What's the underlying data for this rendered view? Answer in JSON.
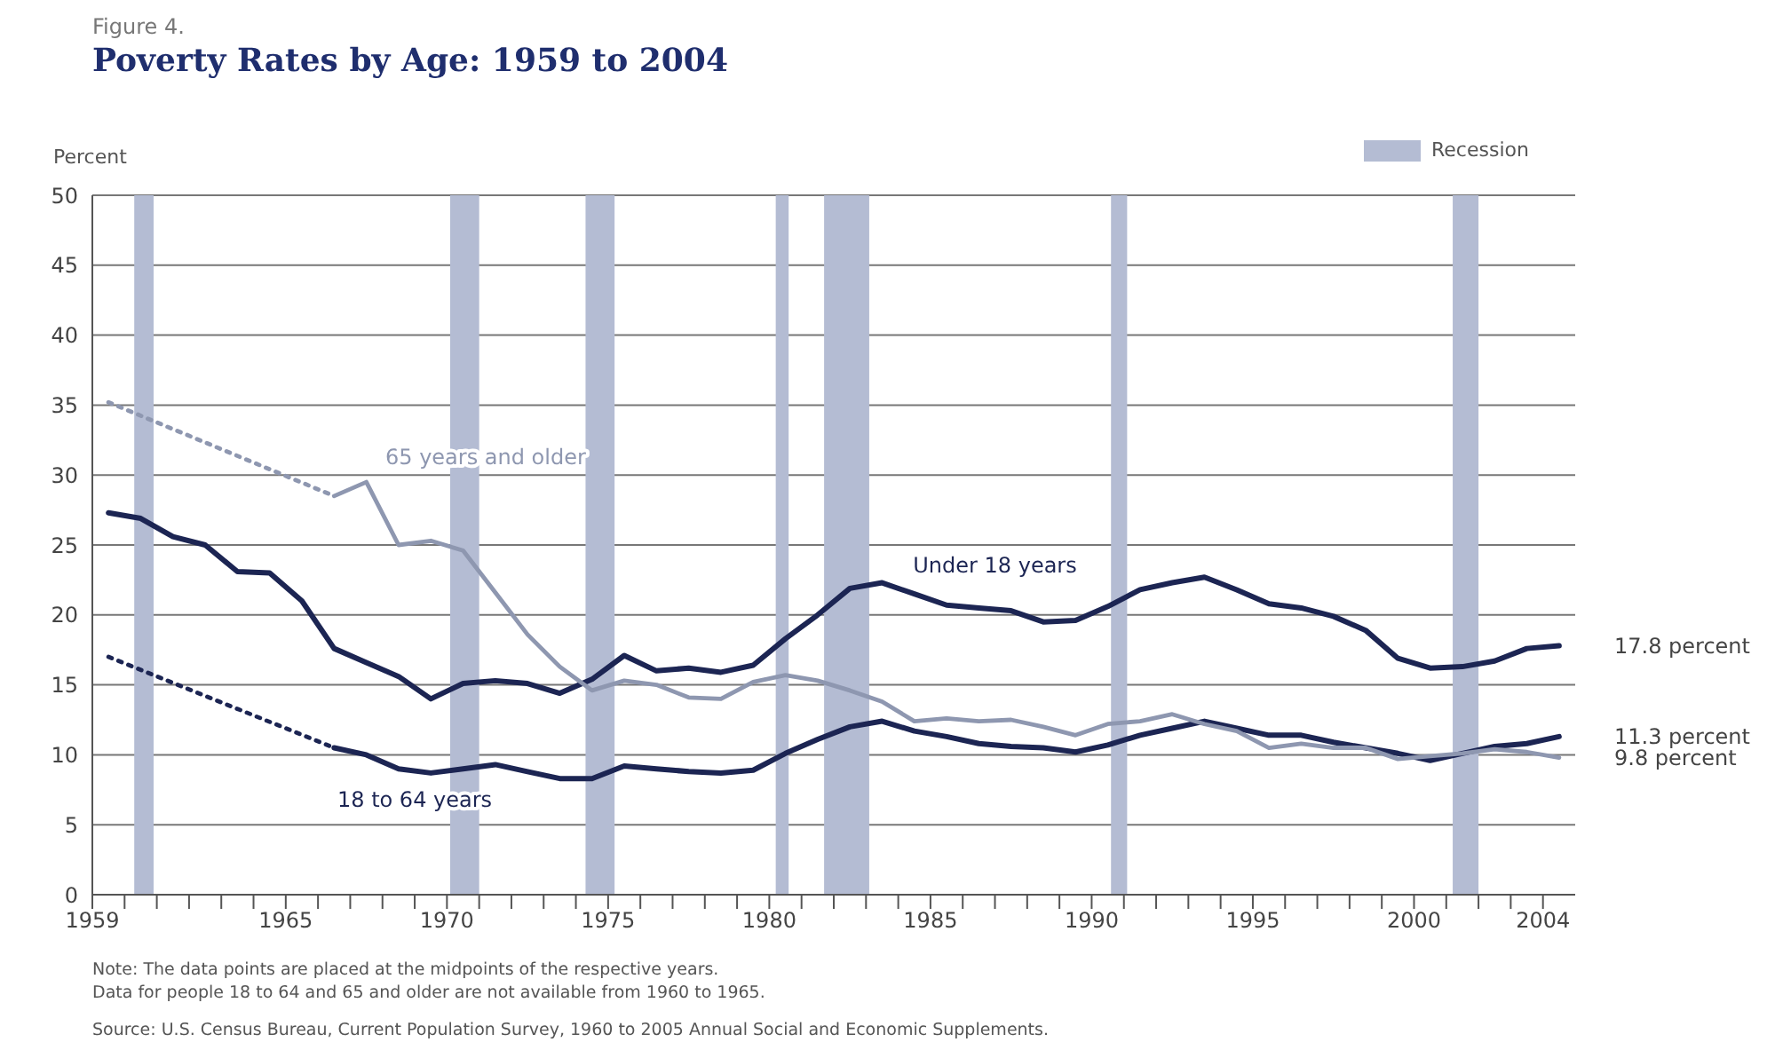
{
  "chart_data": {
    "type": "line",
    "subtitle": "Figure 4.",
    "title": "Poverty Rates by Age:  1959 to 2004",
    "ylabel": "Percent",
    "xlim": [
      1959,
      2005
    ],
    "ylim": [
      0,
      50
    ],
    "yticks": [
      0,
      5,
      10,
      15,
      20,
      25,
      30,
      35,
      40,
      45,
      50
    ],
    "xticks": [
      1959,
      {
        "value": 1960,
        "label": null
      },
      {
        "value": 1961,
        "label": null
      },
      {
        "value": 1962,
        "label": null
      },
      {
        "value": 1963,
        "label": null
      },
      {
        "value": 1964,
        "label": null
      },
      1965,
      {
        "value": 1966,
        "label": null
      },
      {
        "value": 1967,
        "label": null
      },
      {
        "value": 1968,
        "label": null
      },
      {
        "value": 1969,
        "label": null
      },
      1970,
      {
        "value": 1971,
        "label": null
      },
      {
        "value": 1972,
        "label": null
      },
      {
        "value": 1973,
        "label": null
      },
      {
        "value": 1974,
        "label": null
      },
      1975,
      {
        "value": 1976,
        "label": null
      },
      {
        "value": 1977,
        "label": null
      },
      {
        "value": 1978,
        "label": null
      },
      {
        "value": 1979,
        "label": null
      },
      1980,
      {
        "value": 1981,
        "label": null
      },
      {
        "value": 1982,
        "label": null
      },
      {
        "value": 1983,
        "label": null
      },
      {
        "value": 1984,
        "label": null
      },
      1985,
      {
        "value": 1986,
        "label": null
      },
      {
        "value": 1987,
        "label": null
      },
      {
        "value": 1988,
        "label": null
      },
      {
        "value": 1989,
        "label": null
      },
      1990,
      {
        "value": 1991,
        "label": null
      },
      {
        "value": 1992,
        "label": null
      },
      {
        "value": 1993,
        "label": null
      },
      {
        "value": 1994,
        "label": null
      },
      1995,
      {
        "value": 1996,
        "label": null
      },
      {
        "value": 1997,
        "label": null
      },
      {
        "value": 1998,
        "label": null
      },
      {
        "value": 1999,
        "label": null
      },
      2000,
      {
        "value": 2001,
        "label": null
      },
      {
        "value": 2002,
        "label": null
      },
      {
        "value": 2003,
        "label": null
      },
      2004
    ],
    "grid": "y",
    "legend": "top right",
    "marker": "none",
    "line_style": "solid",
    "series": [
      {
        "name": "Under 18 years",
        "color": "#1c2553",
        "x": [
          1959.5,
          1960.5,
          1961.5,
          1962.5,
          1963.5,
          1964.5,
          1965.5,
          1966.5,
          1967.5,
          1968.5,
          1969.5,
          1970.5,
          1971.5,
          1972.5,
          1973.5,
          1974.5,
          1975.5,
          1976.5,
          1977.5,
          1978.5,
          1979.5,
          1980.5,
          1981.5,
          1982.5,
          1983.5,
          1984.5,
          1985.5,
          1986.5,
          1987.5,
          1988.5,
          1989.5,
          1990.5,
          1991.5,
          1992.5,
          1993.5,
          1994.5,
          1995.5,
          1996.5,
          1997.5,
          1998.5,
          1999.5,
          2000.5,
          2001.5,
          2002.5,
          2003.5,
          2004.5
        ],
        "values": [
          27.3,
          26.9,
          25.6,
          25.0,
          23.1,
          23.0,
          21.0,
          17.6,
          16.6,
          15.6,
          14.0,
          15.1,
          15.3,
          15.1,
          14.4,
          15.4,
          17.1,
          16.0,
          16.2,
          15.9,
          16.4,
          18.3,
          20.0,
          21.9,
          22.3,
          21.5,
          20.7,
          20.5,
          20.3,
          19.5,
          19.6,
          20.6,
          21.8,
          22.3,
          22.7,
          21.8,
          20.8,
          20.5,
          19.9,
          18.9,
          16.9,
          16.2,
          16.3,
          16.7,
          17.6,
          17.8
        ]
      },
      {
        "name": "18 to 64 years",
        "color": "#1c2553",
        "x": [
          1966.5,
          1967.5,
          1968.5,
          1969.5,
          1970.5,
          1971.5,
          1972.5,
          1973.5,
          1974.5,
          1975.5,
          1976.5,
          1977.5,
          1978.5,
          1979.5,
          1980.5,
          1981.5,
          1982.5,
          1983.5,
          1984.5,
          1985.5,
          1986.5,
          1987.5,
          1988.5,
          1989.5,
          1990.5,
          1991.5,
          1992.5,
          1993.5,
          1994.5,
          1995.5,
          1996.5,
          1997.5,
          1998.5,
          1999.5,
          2000.5,
          2001.5,
          2002.5,
          2003.5,
          2004.5
        ],
        "values": [
          10.5,
          10.0,
          9.0,
          8.7,
          9.0,
          9.3,
          8.8,
          8.3,
          8.3,
          9.2,
          9.0,
          8.8,
          8.7,
          8.9,
          10.1,
          11.1,
          12.0,
          12.4,
          11.7,
          11.3,
          10.8,
          10.6,
          10.5,
          10.2,
          10.7,
          11.4,
          11.9,
          12.4,
          11.9,
          11.4,
          11.4,
          10.9,
          10.5,
          10.1,
          9.6,
          10.1,
          10.6,
          10.8,
          11.3
        ]
      },
      {
        "name": "65 years and older",
        "color": "#8e97b0",
        "x": [
          1966.5,
          1967.5,
          1968.5,
          1969.5,
          1970.5,
          1971.5,
          1972.5,
          1973.5,
          1974.5,
          1975.5,
          1976.5,
          1977.5,
          1978.5,
          1979.5,
          1980.5,
          1981.5,
          1982.5,
          1983.5,
          1984.5,
          1985.5,
          1986.5,
          1987.5,
          1988.5,
          1989.5,
          1990.5,
          1991.5,
          1992.5,
          1993.5,
          1994.5,
          1995.5,
          1996.5,
          1997.5,
          1998.5,
          1999.5,
          2000.5,
          2001.5,
          2002.5,
          2003.5,
          2004.5
        ],
        "values": [
          28.5,
          29.5,
          25.0,
          25.3,
          24.6,
          21.6,
          18.6,
          16.3,
          14.6,
          15.3,
          15.0,
          14.1,
          14.0,
          15.2,
          15.7,
          15.3,
          14.6,
          13.8,
          12.4,
          12.6,
          12.4,
          12.5,
          12.0,
          11.4,
          12.2,
          12.4,
          12.9,
          12.2,
          11.7,
          10.5,
          10.8,
          10.5,
          10.5,
          9.7,
          9.9,
          10.1,
          10.4,
          10.2,
          9.8
        ]
      },
      {
        "color": "#8e97b0",
        "line_style": "dotted",
        "x": [
          1959.5,
          1966.5
        ],
        "values": [
          35.2,
          28.5
        ]
      },
      {
        "color": "#1c2553",
        "line_style": "dotted",
        "x": [
          1959.5,
          1966.5
        ],
        "values": [
          17.0,
          10.5
        ]
      }
    ],
    "bands": [
      {
        "axis": "x",
        "from": 1960.3,
        "to": 1960.9,
        "label": "Recession",
        "color": "#b4bcd3"
      },
      {
        "axis": "x",
        "from": 1970.1,
        "to": 1971.0,
        "color": "#b4bcd3"
      },
      {
        "axis": "x",
        "from": 1974.3,
        "to": 1975.2,
        "color": "#b4bcd3"
      },
      {
        "axis": "x",
        "from": 1980.2,
        "to": 1980.6,
        "color": "#b4bcd3"
      },
      {
        "axis": "x",
        "from": 1981.7,
        "to": 1983.1,
        "color": "#b4bcd3"
      },
      {
        "axis": "x",
        "from": 1990.6,
        "to": 1991.1,
        "color": "#b4bcd3"
      },
      {
        "axis": "x",
        "from": 2001.2,
        "to": 2002.0,
        "color": "#b4bcd3"
      }
    ],
    "annotations": [
      "17.8 percent",
      "11.3 percent",
      "9.8 percent",
      "Note:  The data points are placed at the midpoints of the respective years.",
      "Data for people 18 to 64 and 65 and older are not available from 1960 to 1965.",
      "Source:  U.S. Census Bureau, Current Population Survey, 1960 to 2005 Annual Social and Economic Supplements."
    ]
  }
}
